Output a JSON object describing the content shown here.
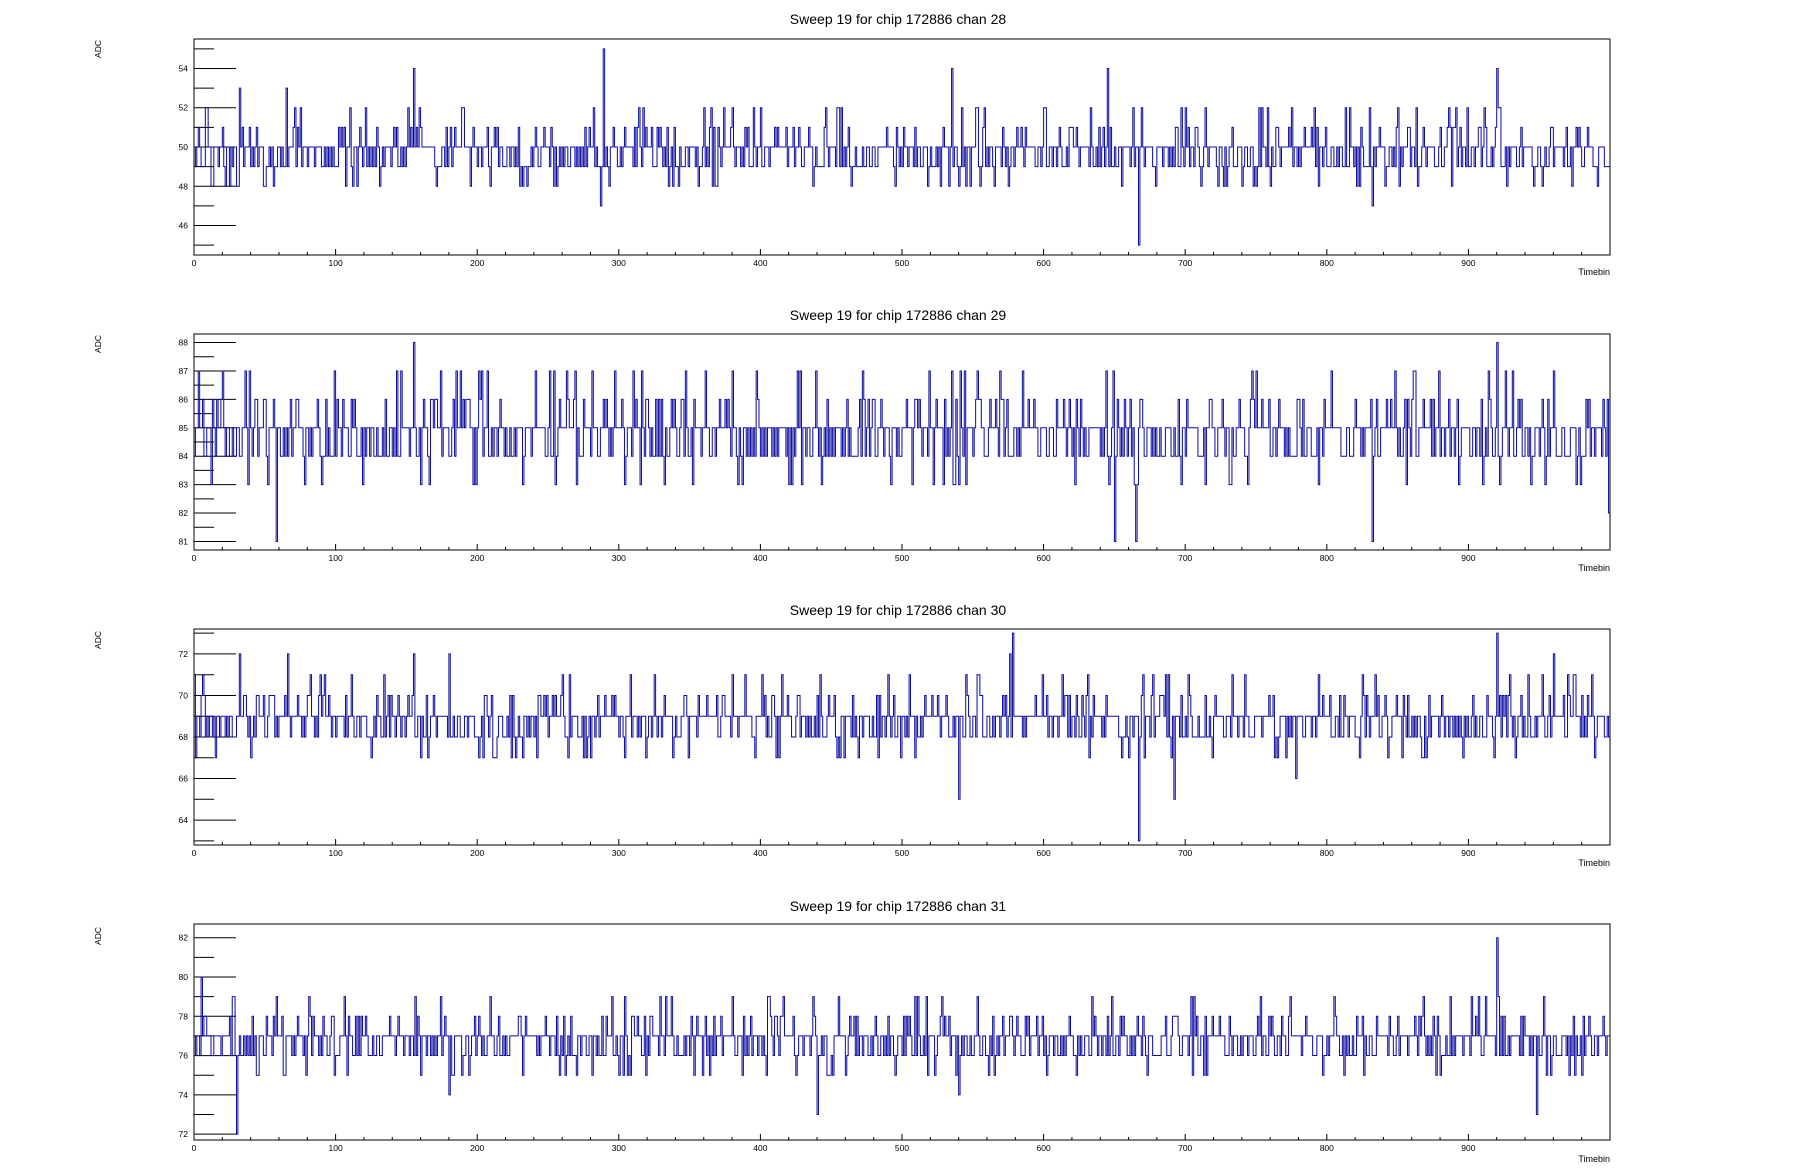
{
  "chart_data": [
    {
      "type": "line",
      "title": "Sweep 19 for chip 172886 chan 28",
      "xlabel": "Timebin",
      "ylabel": "ADC",
      "xlim": [
        0,
        1000
      ],
      "ylim": [
        44.5,
        55.5
      ],
      "xticks": [
        0,
        100,
        200,
        300,
        400,
        500,
        600,
        700,
        800,
        900
      ],
      "yticks": [
        46,
        48,
        50,
        52,
        54
      ],
      "baseline": 50.2,
      "spikes": [
        [
          8,
          52
        ],
        [
          12,
          48
        ],
        [
          32,
          53
        ],
        [
          65,
          53
        ],
        [
          115,
          48
        ],
        [
          155,
          54
        ],
        [
          289,
          55
        ],
        [
          287,
          47
        ],
        [
          535,
          54
        ],
        [
          533,
          48
        ],
        [
          565,
          48
        ],
        [
          645,
          54
        ],
        [
          667,
          45
        ],
        [
          750,
          48
        ],
        [
          832,
          47
        ],
        [
          920,
          54
        ],
        [
          952,
          48
        ]
      ],
      "color": "#0a0aa0",
      "series": [
        {
          "values": []
        }
      ]
    },
    {
      "type": "line",
      "title": "Sweep 19 for chip 172886 chan 29",
      "xlabel": "Timebin",
      "ylabel": "ADC",
      "xlim": [
        0,
        1000
      ],
      "ylim": [
        80.7,
        88.3
      ],
      "xticks": [
        0,
        100,
        200,
        300,
        400,
        500,
        600,
        700,
        800,
        900
      ],
      "yticks": [
        81,
        82,
        83,
        84,
        85,
        86,
        87,
        88
      ],
      "baseline": 84.6,
      "spikes": [
        [
          58,
          81
        ],
        [
          155,
          88
        ],
        [
          185,
          87
        ],
        [
          535,
          87
        ],
        [
          585,
          87
        ],
        [
          650,
          81
        ],
        [
          665,
          81
        ],
        [
          832,
          81
        ],
        [
          920,
          88
        ],
        [
          1000,
          82
        ]
      ],
      "color": "#0a0aa0",
      "series": [
        {
          "values": []
        }
      ]
    },
    {
      "type": "line",
      "title": "Sweep 19 for chip 172886 chan 30",
      "xlabel": "Timebin",
      "ylabel": "ADC",
      "xlim": [
        0,
        1000
      ],
      "ylim": [
        62.8,
        73.2
      ],
      "xticks": [
        0,
        100,
        200,
        300,
        400,
        500,
        600,
        700,
        800,
        900
      ],
      "yticks": [
        64,
        66,
        68,
        70,
        72
      ],
      "baseline": 68.6,
      "spikes": [
        [
          32,
          72
        ],
        [
          66,
          72
        ],
        [
          155,
          72
        ],
        [
          180,
          72
        ],
        [
          540,
          65
        ],
        [
          578,
          73
        ],
        [
          576,
          72
        ],
        [
          667,
          63
        ],
        [
          692,
          65
        ],
        [
          778,
          66
        ],
        [
          920,
          73
        ],
        [
          960,
          72
        ]
      ],
      "color": "#0a0aa0",
      "series": [
        {
          "values": []
        }
      ]
    },
    {
      "type": "line",
      "title": "Sweep 19 for chip 172886 chan 31",
      "xlabel": "Timebin",
      "ylabel": "ADC",
      "xlim": [
        0,
        1000
      ],
      "ylim": [
        71.7,
        82.7
      ],
      "xticks": [
        0,
        100,
        200,
        300,
        400,
        500,
        600,
        700,
        800,
        900
      ],
      "yticks": [
        72,
        74,
        76,
        78,
        80,
        82
      ],
      "baseline": 76.8,
      "spikes": [
        [
          5,
          80
        ],
        [
          30,
          72
        ],
        [
          180,
          74
        ],
        [
          440,
          73
        ],
        [
          540,
          74
        ],
        [
          920,
          82
        ],
        [
          948,
          73
        ]
      ],
      "color": "#0a0aa0",
      "series": [
        {
          "values": []
        }
      ]
    }
  ]
}
